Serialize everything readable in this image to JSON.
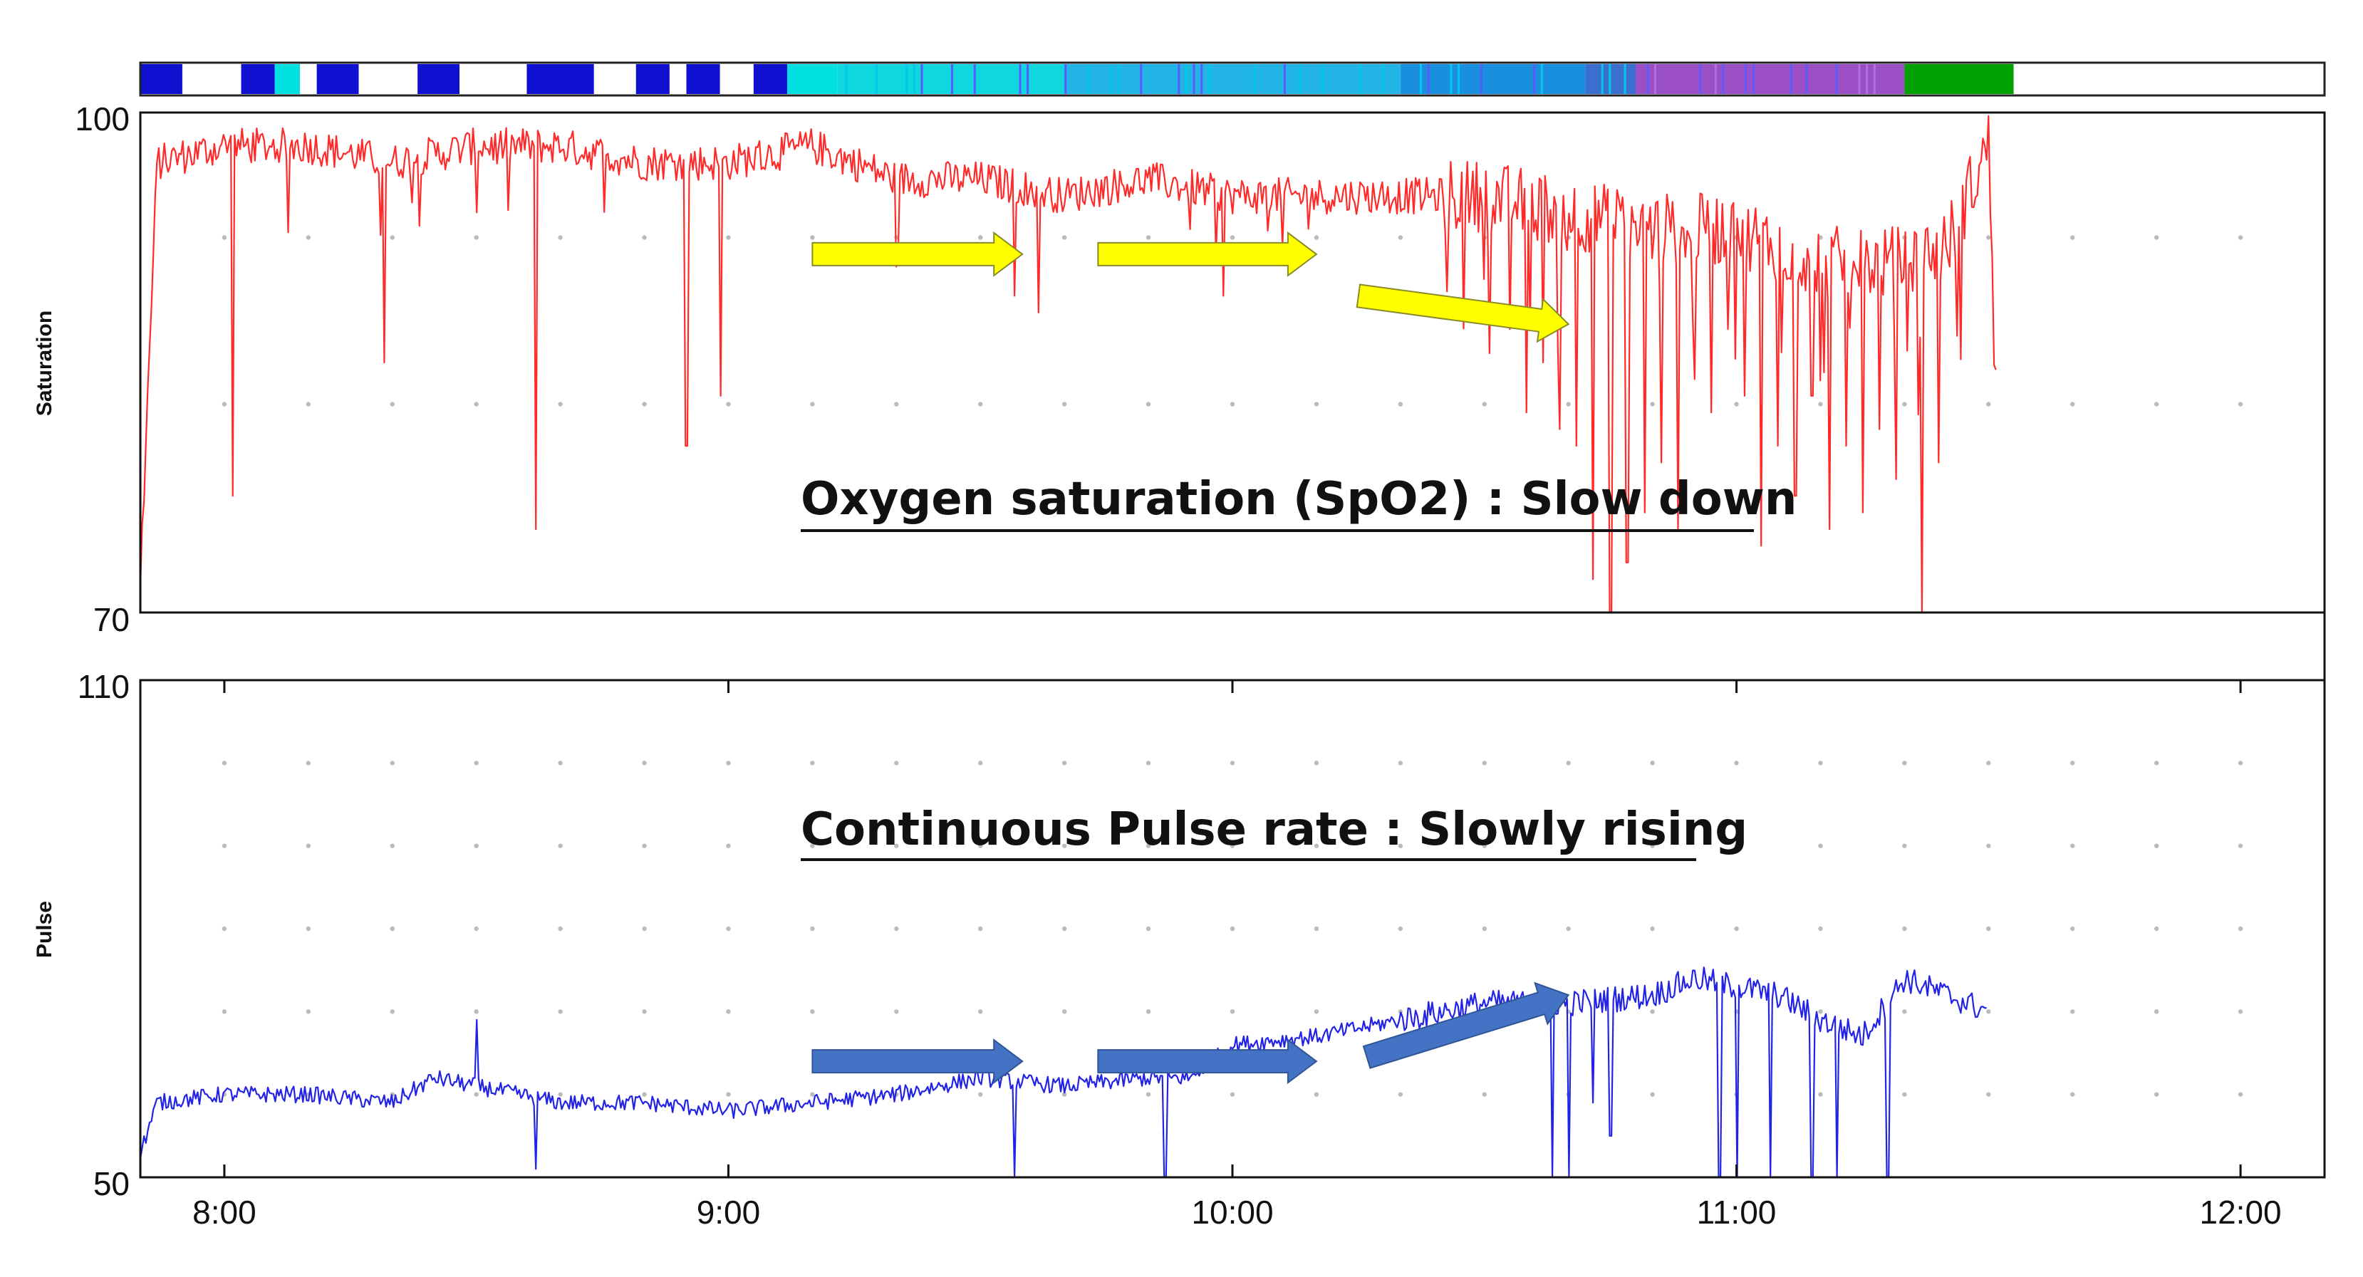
{
  "chart_data": [
    {
      "type": "line",
      "panel": "top",
      "ylabel": "Saturation",
      "ylim": [
        70,
        100
      ],
      "xlim": [
        "7:50",
        "12:10"
      ],
      "y_tick_labels": [
        "100",
        "70"
      ],
      "annotation": "Oxygen saturation (SpO2) : Slow down",
      "series": [
        {
          "name": "SpO2",
          "color": "#ff2a2a",
          "x": [
            "7:50",
            "7:52",
            "8:00",
            "8:10",
            "8:20",
            "8:30",
            "8:40",
            "8:50",
            "9:00",
            "9:10",
            "9:20",
            "9:30",
            "9:40",
            "9:50",
            "10:00",
            "10:10",
            "10:20",
            "10:30",
            "10:40",
            "10:50",
            "11:00",
            "11:10",
            "11:20",
            "11:25",
            "11:30",
            "11:31"
          ],
          "y": [
            72,
            97,
            98,
            98,
            97,
            98,
            98,
            97,
            97,
            98,
            96,
            96,
            95,
            96,
            95,
            95,
            95,
            95,
            94,
            93,
            93,
            91,
            91,
            92,
            98,
            85
          ]
        }
      ],
      "dips": [
        {
          "x": "8:01",
          "y": 77
        },
        {
          "x": "8:19",
          "y": 85
        },
        {
          "x": "8:30",
          "y": 94
        },
        {
          "x": "8:37",
          "y": 75
        },
        {
          "x": "8:55",
          "y": 80
        },
        {
          "x": "8:59",
          "y": 83
        },
        {
          "x": "9:34",
          "y": 89
        },
        {
          "x": "9:37",
          "y": 88
        },
        {
          "x": "9:55",
          "y": 93
        },
        {
          "x": "9:59",
          "y": 89
        },
        {
          "x": "10:06",
          "y": 92
        },
        {
          "x": "10:30",
          "y": 90
        },
        {
          "x": "10:33",
          "y": 87
        },
        {
          "x": "10:35",
          "y": 82
        },
        {
          "x": "10:37",
          "y": 85
        },
        {
          "x": "10:39",
          "y": 81
        },
        {
          "x": "10:41",
          "y": 80
        },
        {
          "x": "10:43",
          "y": 72
        },
        {
          "x": "10:45",
          "y": 70
        },
        {
          "x": "10:47",
          "y": 73
        },
        {
          "x": "10:49",
          "y": 76
        },
        {
          "x": "10:51",
          "y": 79
        },
        {
          "x": "10:53",
          "y": 75
        },
        {
          "x": "10:55",
          "y": 84
        },
        {
          "x": "10:57",
          "y": 82
        },
        {
          "x": "10:59",
          "y": 87
        },
        {
          "x": "11:01",
          "y": 83
        },
        {
          "x": "11:03",
          "y": 74
        },
        {
          "x": "11:05",
          "y": 80
        },
        {
          "x": "11:07",
          "y": 77
        },
        {
          "x": "11:09",
          "y": 83
        },
        {
          "x": "11:11",
          "y": 75
        },
        {
          "x": "11:13",
          "y": 80
        },
        {
          "x": "11:15",
          "y": 76
        },
        {
          "x": "11:17",
          "y": 81
        },
        {
          "x": "11:19",
          "y": 78
        },
        {
          "x": "11:22",
          "y": 70
        },
        {
          "x": "11:24",
          "y": 79
        }
      ],
      "arrows": [
        {
          "from": [
            "9:10",
            91.5
          ],
          "to": [
            "9:35",
            91.5
          ]
        },
        {
          "from": [
            "9:44",
            91.5
          ],
          "to": [
            "10:10",
            91.5
          ]
        },
        {
          "from": [
            "10:15",
            89
          ],
          "to": [
            "10:40",
            87.3
          ]
        }
      ],
      "arrow_color": "#ffff00"
    },
    {
      "type": "line",
      "panel": "bottom",
      "ylabel": "Pulse",
      "ylim": [
        50,
        110
      ],
      "xlim": [
        "7:50",
        "12:10"
      ],
      "y_tick_labels": [
        "110",
        "50"
      ],
      "x_tick_labels": [
        "8:00",
        "9:00",
        "10:00",
        "11:00",
        "12:00"
      ],
      "annotation": "Continuous Pulse rate : Slowly rising",
      "series": [
        {
          "name": "Pulse",
          "color": "#2323e6",
          "x": [
            "7:50",
            "7:52",
            "8:00",
            "8:10",
            "8:20",
            "8:25",
            "8:30",
            "8:35",
            "8:40",
            "8:50",
            "9:00",
            "9:10",
            "9:20",
            "9:30",
            "9:40",
            "9:50",
            "9:55",
            "10:00",
            "10:10",
            "10:20",
            "10:30",
            "10:40",
            "10:50",
            "10:55",
            "11:00",
            "11:05",
            "11:10",
            "11:15",
            "11:20",
            "11:25",
            "11:30"
          ],
          "y": [
            53,
            59,
            60,
            60,
            59,
            62,
            61,
            60,
            59,
            59,
            58,
            59,
            60,
            62,
            61,
            62,
            62,
            66,
            67,
            69,
            71,
            71,
            72,
            74,
            73,
            72,
            69,
            67,
            74,
            72,
            70
          ]
        }
      ],
      "dips": [
        {
          "x": "8:30",
          "y": 69
        },
        {
          "x": "8:37",
          "y": 51
        },
        {
          "x": "9:34",
          "y": 50
        },
        {
          "x": "9:52",
          "y": 50
        },
        {
          "x": "10:38",
          "y": 50
        },
        {
          "x": "10:40",
          "y": 50
        },
        {
          "x": "10:43",
          "y": 59
        },
        {
          "x": "10:45",
          "y": 55
        },
        {
          "x": "10:58",
          "y": 50
        },
        {
          "x": "11:00",
          "y": 50
        },
        {
          "x": "11:04",
          "y": 50
        },
        {
          "x": "11:09",
          "y": 50
        },
        {
          "x": "11:12",
          "y": 50
        },
        {
          "x": "11:18",
          "y": 50
        }
      ],
      "arrows": [
        {
          "from": [
            "9:10",
            64
          ],
          "to": [
            "9:35",
            64
          ]
        },
        {
          "from": [
            "9:44",
            64
          ],
          "to": [
            "10:10",
            64
          ]
        },
        {
          "from": [
            "10:16",
            64.5
          ],
          "to": [
            "10:40",
            72
          ]
        }
      ],
      "arrow_color": "#4472c4"
    },
    {
      "type": "heatmap",
      "panel": "stage-strip",
      "x_range": [
        "7:50",
        "12:10"
      ],
      "segments": [
        {
          "start": "7:50",
          "end": "7:55",
          "color": "#1010d0"
        },
        {
          "start": "7:55",
          "end": "8:02",
          "color": "#ffffff"
        },
        {
          "start": "8:02",
          "end": "8:06",
          "color": "#1010d0"
        },
        {
          "start": "8:06",
          "end": "8:09",
          "color": "#00e0e0"
        },
        {
          "start": "8:09",
          "end": "8:11",
          "color": "#ffffff"
        },
        {
          "start": "8:11",
          "end": "8:16",
          "color": "#1010d0"
        },
        {
          "start": "8:16",
          "end": "8:23",
          "color": "#ffffff"
        },
        {
          "start": "8:23",
          "end": "8:28",
          "color": "#1010d0"
        },
        {
          "start": "8:28",
          "end": "8:36",
          "color": "#ffffff"
        },
        {
          "start": "8:36",
          "end": "8:44",
          "color": "#1010d0"
        },
        {
          "start": "8:44",
          "end": "8:49",
          "color": "#ffffff"
        },
        {
          "start": "8:49",
          "end": "8:53",
          "color": "#1010d0"
        },
        {
          "start": "8:53",
          "end": "8:55",
          "color": "#ffffff"
        },
        {
          "start": "8:55",
          "end": "8:59",
          "color": "#1010d0"
        },
        {
          "start": "8:59",
          "end": "9:03",
          "color": "#ffffff"
        },
        {
          "start": "9:03",
          "end": "9:07",
          "color": "#1010d0"
        },
        {
          "start": "9:07",
          "end": "9:13",
          "color": "#00e0e0"
        },
        {
          "start": "9:13",
          "end": "9:40",
          "color": "#0fd7e0"
        },
        {
          "start": "9:40",
          "end": "10:20",
          "color": "#22b4e4"
        },
        {
          "start": "10:20",
          "end": "10:42",
          "color": "#1a8fe0"
        },
        {
          "start": "10:42",
          "end": "10:48",
          "color": "#3a6fd0"
        },
        {
          "start": "10:48",
          "end": "11:20",
          "color": "#9b4fc7"
        },
        {
          "start": "11:20",
          "end": "11:33",
          "color": "#00a000"
        },
        {
          "start": "11:33",
          "end": "12:10",
          "color": "#ffffff"
        }
      ]
    }
  ]
}
